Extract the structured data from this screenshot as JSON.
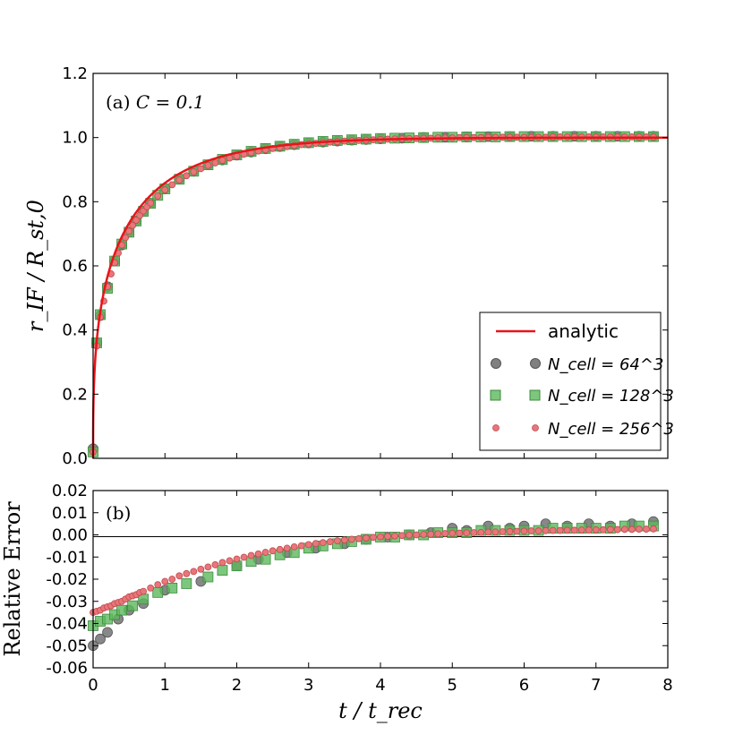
{
  "chart_data": [
    {
      "type": "line",
      "panel_label": "(a)",
      "panel_condition": "C = 0.1",
      "ylabel": "r_IF / R_st,0",
      "xlabel": "",
      "xlim": [
        0,
        8
      ],
      "ylim": [
        0.0,
        1.2
      ],
      "xticks": [
        "0",
        "1",
        "2",
        "3",
        "4",
        "5",
        "6",
        "7",
        "8"
      ],
      "yticks": [
        "0.0",
        "0.2",
        "0.4",
        "0.6",
        "0.8",
        "1.0",
        "1.2"
      ],
      "legend": {
        "location": "lower-right",
        "entries": [
          {
            "label": "analytic",
            "marker": "line",
            "color": "#e8141a"
          },
          {
            "label": "N_cell = 64^3",
            "marker": "circle",
            "color": "#555555"
          },
          {
            "label": "N_cell = 128^3",
            "marker": "square",
            "color": "#5cb85c"
          },
          {
            "label": "N_cell = 256^3",
            "marker": "small-circle",
            "color": "#e8767a"
          }
        ]
      },
      "series": [
        {
          "name": "analytic",
          "formula": "(1 - exp(-t))^(1/3)"
        },
        {
          "name": "N_cell = 64^3",
          "x": [
            0.0,
            0.05,
            0.1,
            0.2,
            0.3,
            0.4,
            0.5,
            0.6,
            0.7,
            0.8,
            1.0,
            1.2,
            1.4,
            1.6,
            1.8,
            2.0,
            2.2,
            2.4,
            2.6,
            2.8,
            3.0,
            3.2,
            3.4,
            3.6,
            3.8,
            4.0,
            4.3,
            4.6,
            4.9,
            5.2,
            5.5,
            5.8,
            6.1,
            6.4,
            6.7,
            7.0,
            7.3,
            7.6,
            7.8
          ],
          "y": [
            0.03,
            0.36,
            0.445,
            0.535,
            0.615,
            0.665,
            0.705,
            0.74,
            0.77,
            0.795,
            0.84,
            0.87,
            0.895,
            0.915,
            0.93,
            0.945,
            0.955,
            0.965,
            0.972,
            0.978,
            0.983,
            0.986,
            0.989,
            0.992,
            0.994,
            0.996,
            0.998,
            1.0,
            1.001,
            1.002,
            1.003,
            1.003,
            1.004,
            1.004,
            1.004,
            1.004,
            1.004,
            1.004,
            1.004
          ]
        },
        {
          "name": "N_cell = 128^3",
          "x": [
            0.0,
            0.05,
            0.1,
            0.2,
            0.3,
            0.4,
            0.5,
            0.6,
            0.7,
            0.8,
            0.9,
            1.0,
            1.2,
            1.4,
            1.6,
            1.8,
            2.0,
            2.2,
            2.4,
            2.6,
            2.8,
            3.0,
            3.2,
            3.4,
            3.6,
            3.8,
            4.0,
            4.2,
            4.4,
            4.6,
            4.8,
            5.0,
            5.2,
            5.4,
            5.6,
            5.8,
            6.0,
            6.2,
            6.4,
            6.6,
            6.8,
            7.0,
            7.2,
            7.4,
            7.6,
            7.8
          ],
          "y": [
            0.02,
            0.36,
            0.448,
            0.53,
            0.615,
            0.668,
            0.705,
            0.74,
            0.77,
            0.795,
            0.82,
            0.84,
            0.87,
            0.895,
            0.915,
            0.932,
            0.946,
            0.957,
            0.966,
            0.973,
            0.979,
            0.984,
            0.988,
            0.991,
            0.993,
            0.995,
            0.997,
            0.998,
            0.999,
            1.0,
            1.001,
            1.001,
            1.002,
            1.002,
            1.002,
            1.003,
            1.003,
            1.003,
            1.003,
            1.003,
            1.003,
            1.003,
            1.003,
            1.003,
            1.003,
            1.003
          ]
        },
        {
          "name": "N_cell = 256^3",
          "x": [
            0.0,
            0.05,
            0.1,
            0.15,
            0.2,
            0.25,
            0.3,
            0.35,
            0.4,
            0.45,
            0.5,
            0.55,
            0.6,
            0.65,
            0.7,
            0.75,
            0.8,
            0.9,
            1.0,
            1.1,
            1.2,
            1.3,
            1.4,
            1.5,
            1.6,
            1.7,
            1.8,
            1.9,
            2.0,
            2.1,
            2.2,
            2.3,
            2.4,
            2.5,
            2.6,
            2.7,
            2.8,
            2.9,
            3.0,
            3.1,
            3.2,
            3.3,
            3.4,
            3.5,
            3.6,
            3.7,
            3.8,
            3.9,
            4.0,
            4.1,
            4.2,
            4.3,
            4.4,
            4.5,
            4.6,
            4.7,
            4.8,
            4.9,
            5.0,
            5.1,
            5.2,
            5.3,
            5.4,
            5.5,
            5.6,
            5.7,
            5.8,
            5.9,
            6.0,
            6.1,
            6.2,
            6.3,
            6.4,
            6.5,
            6.6,
            6.7,
            6.8,
            6.9,
            7.0,
            7.1,
            7.2,
            7.3,
            7.4,
            7.5,
            7.6,
            7.7,
            7.8
          ],
          "y": [
            0.02,
            0.35,
            0.44,
            0.49,
            0.535,
            0.575,
            0.61,
            0.64,
            0.665,
            0.688,
            0.708,
            0.726,
            0.742,
            0.757,
            0.771,
            0.784,
            0.796,
            0.818,
            0.837,
            0.853,
            0.868,
            0.881,
            0.893,
            0.903,
            0.913,
            0.921,
            0.929,
            0.936,
            0.942,
            0.948,
            0.953,
            0.958,
            0.962,
            0.966,
            0.969,
            0.972,
            0.975,
            0.978,
            0.98,
            0.982,
            0.984,
            0.986,
            0.987,
            0.989,
            0.99,
            0.991,
            0.992,
            0.993,
            0.994,
            0.995,
            0.996,
            0.996,
            0.997,
            0.997,
            0.998,
            0.998,
            0.999,
            0.999,
            0.999,
            1.0,
            1.0,
            1.0,
            1.0,
            1.001,
            1.001,
            1.001,
            1.001,
            1.001,
            1.001,
            1.001,
            1.001,
            1.001,
            1.002,
            1.002,
            1.002,
            1.002,
            1.002,
            1.002,
            1.002,
            1.002,
            1.002,
            1.002,
            1.002,
            1.002,
            1.002,
            1.002,
            1.002
          ]
        }
      ]
    },
    {
      "type": "scatter",
      "panel_label": "(b)",
      "ylabel": "Relative Error",
      "xlabel": "t / t_rec",
      "xlim": [
        0,
        8
      ],
      "ylim": [
        -0.06,
        0.02
      ],
      "xticks": [
        "0",
        "1",
        "2",
        "3",
        "4",
        "5",
        "6",
        "7",
        "8"
      ],
      "yticks": [
        "-0.06",
        "-0.05",
        "-0.04",
        "-0.03",
        "-0.02",
        "-0.01",
        "0.00",
        "0.01",
        "0.02"
      ],
      "reference_line": 0.0,
      "series": [
        {
          "name": "N_cell = 64^3",
          "x": [
            0.0,
            0.1,
            0.2,
            0.35,
            0.5,
            0.7,
            1.0,
            1.5,
            2.0,
            2.3,
            2.7,
            3.1,
            3.5,
            3.8,
            4.1,
            4.4,
            4.7,
            5.0,
            5.2,
            5.5,
            5.8,
            6.0,
            6.3,
            6.6,
            6.9,
            7.2,
            7.5,
            7.8
          ],
          "y": [
            -0.05,
            -0.047,
            -0.044,
            -0.038,
            -0.034,
            -0.031,
            -0.025,
            -0.021,
            -0.014,
            -0.011,
            -0.008,
            -0.006,
            -0.004,
            -0.002,
            -0.001,
            0.0,
            0.001,
            0.003,
            0.002,
            0.004,
            0.003,
            0.004,
            0.005,
            0.004,
            0.005,
            0.004,
            0.005,
            0.006
          ]
        },
        {
          "name": "N_cell = 128^3",
          "x": [
            0.0,
            0.1,
            0.2,
            0.3,
            0.4,
            0.55,
            0.7,
            0.9,
            1.1,
            1.3,
            1.6,
            1.8,
            2.0,
            2.2,
            2.4,
            2.6,
            2.8,
            3.0,
            3.2,
            3.4,
            3.6,
            3.8,
            4.0,
            4.2,
            4.4,
            4.6,
            4.8,
            5.0,
            5.2,
            5.4,
            5.6,
            5.8,
            6.0,
            6.2,
            6.4,
            6.6,
            6.8,
            7.0,
            7.2,
            7.4,
            7.6,
            7.8
          ],
          "y": [
            -0.041,
            -0.039,
            -0.038,
            -0.036,
            -0.034,
            -0.032,
            -0.029,
            -0.026,
            -0.024,
            -0.022,
            -0.019,
            -0.016,
            -0.014,
            -0.012,
            -0.011,
            -0.009,
            -0.008,
            -0.006,
            -0.005,
            -0.004,
            -0.003,
            -0.002,
            -0.001,
            -0.001,
            0.0,
            0.0,
            0.001,
            0.001,
            0.001,
            0.002,
            0.002,
            0.002,
            0.002,
            0.002,
            0.003,
            0.003,
            0.003,
            0.003,
            0.003,
            0.004,
            0.004,
            0.004
          ]
        },
        {
          "name": "N_cell = 256^3",
          "x": [
            0.0,
            0.05,
            0.1,
            0.15,
            0.2,
            0.25,
            0.3,
            0.35,
            0.4,
            0.45,
            0.5,
            0.55,
            0.6,
            0.65,
            0.7,
            0.8,
            0.9,
            1.0,
            1.1,
            1.2,
            1.3,
            1.4,
            1.5,
            1.6,
            1.7,
            1.8,
            1.9,
            2.0,
            2.1,
            2.2,
            2.3,
            2.4,
            2.5,
            2.6,
            2.7,
            2.8,
            2.9,
            3.0,
            3.1,
            3.2,
            3.3,
            3.4,
            3.5,
            3.6,
            3.7,
            3.8,
            3.9,
            4.0,
            4.1,
            4.2,
            4.3,
            4.4,
            4.5,
            4.6,
            4.7,
            4.8,
            4.9,
            5.0,
            5.1,
            5.2,
            5.3,
            5.4,
            5.5,
            5.6,
            5.7,
            5.8,
            5.9,
            6.0,
            6.1,
            6.2,
            6.3,
            6.4,
            6.5,
            6.6,
            6.7,
            6.8,
            6.9,
            7.0,
            7.1,
            7.2,
            7.3,
            7.4,
            7.5,
            7.6,
            7.7,
            7.8
          ],
          "y": [
            -0.035,
            -0.0345,
            -0.034,
            -0.033,
            -0.0325,
            -0.032,
            -0.031,
            -0.0305,
            -0.03,
            -0.029,
            -0.028,
            -0.0275,
            -0.027,
            -0.026,
            -0.0255,
            -0.024,
            -0.0225,
            -0.021,
            -0.02,
            -0.0185,
            -0.0175,
            -0.0165,
            -0.0155,
            -0.0145,
            -0.0135,
            -0.0125,
            -0.0117,
            -0.0109,
            -0.0101,
            -0.0093,
            -0.0086,
            -0.0079,
            -0.0072,
            -0.0066,
            -0.006,
            -0.0054,
            -0.0049,
            -0.0044,
            -0.0039,
            -0.0035,
            -0.0031,
            -0.0027,
            -0.0023,
            -0.002,
            -0.0017,
            -0.0014,
            -0.0011,
            -0.0009,
            -0.0007,
            -0.0005,
            -0.0003,
            -0.0001,
            0.0,
            0.0002,
            0.0003,
            0.0005,
            0.0006,
            0.0007,
            0.0008,
            0.0009,
            0.001,
            0.0011,
            0.0012,
            0.0013,
            0.0014,
            0.0015,
            0.0016,
            0.0017,
            0.0018,
            0.0018,
            0.0019,
            0.002,
            0.002,
            0.0021,
            0.0021,
            0.0022,
            0.0022,
            0.0023,
            0.0023,
            0.0024,
            0.0024,
            0.0025,
            0.0025,
            0.0026,
            0.0026,
            0.0027
          ]
        }
      ]
    }
  ]
}
